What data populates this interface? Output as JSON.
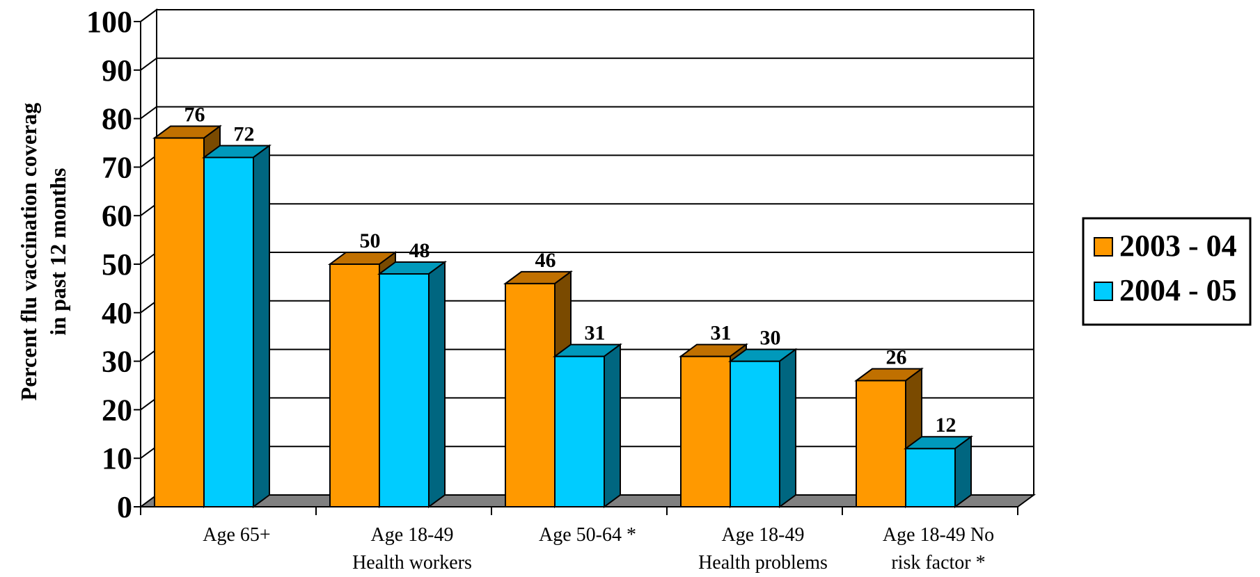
{
  "chart_data": {
    "type": "bar",
    "style": "3d-clustered",
    "ylabel": [
      "Percent flu vaccination coverag",
      "in past 12 months"
    ],
    "xlabel": "",
    "ylim": [
      0,
      100
    ],
    "yticks": [
      0,
      10,
      20,
      30,
      40,
      50,
      60,
      70,
      80,
      90,
      100
    ],
    "grid": true,
    "legend_position": "right",
    "categories": [
      [
        "Age 65+"
      ],
      [
        "Age 18-49",
        "Health workers"
      ],
      [
        "Age 50-64 *"
      ],
      [
        "Age 18-49",
        "Health problems"
      ],
      [
        "Age 18-49 No",
        "risk factor *"
      ]
    ],
    "series": [
      {
        "name": "2003 - 04",
        "values": [
          76,
          50,
          46,
          31,
          26
        ],
        "color": "#ff9900",
        "top_color": "#c07000",
        "side_color": "#7a4a00"
      },
      {
        "name": "2004 - 05",
        "values": [
          72,
          48,
          31,
          30,
          12
        ],
        "color": "#00ccff",
        "top_color": "#0099bb",
        "side_color": "#006680"
      }
    ]
  }
}
